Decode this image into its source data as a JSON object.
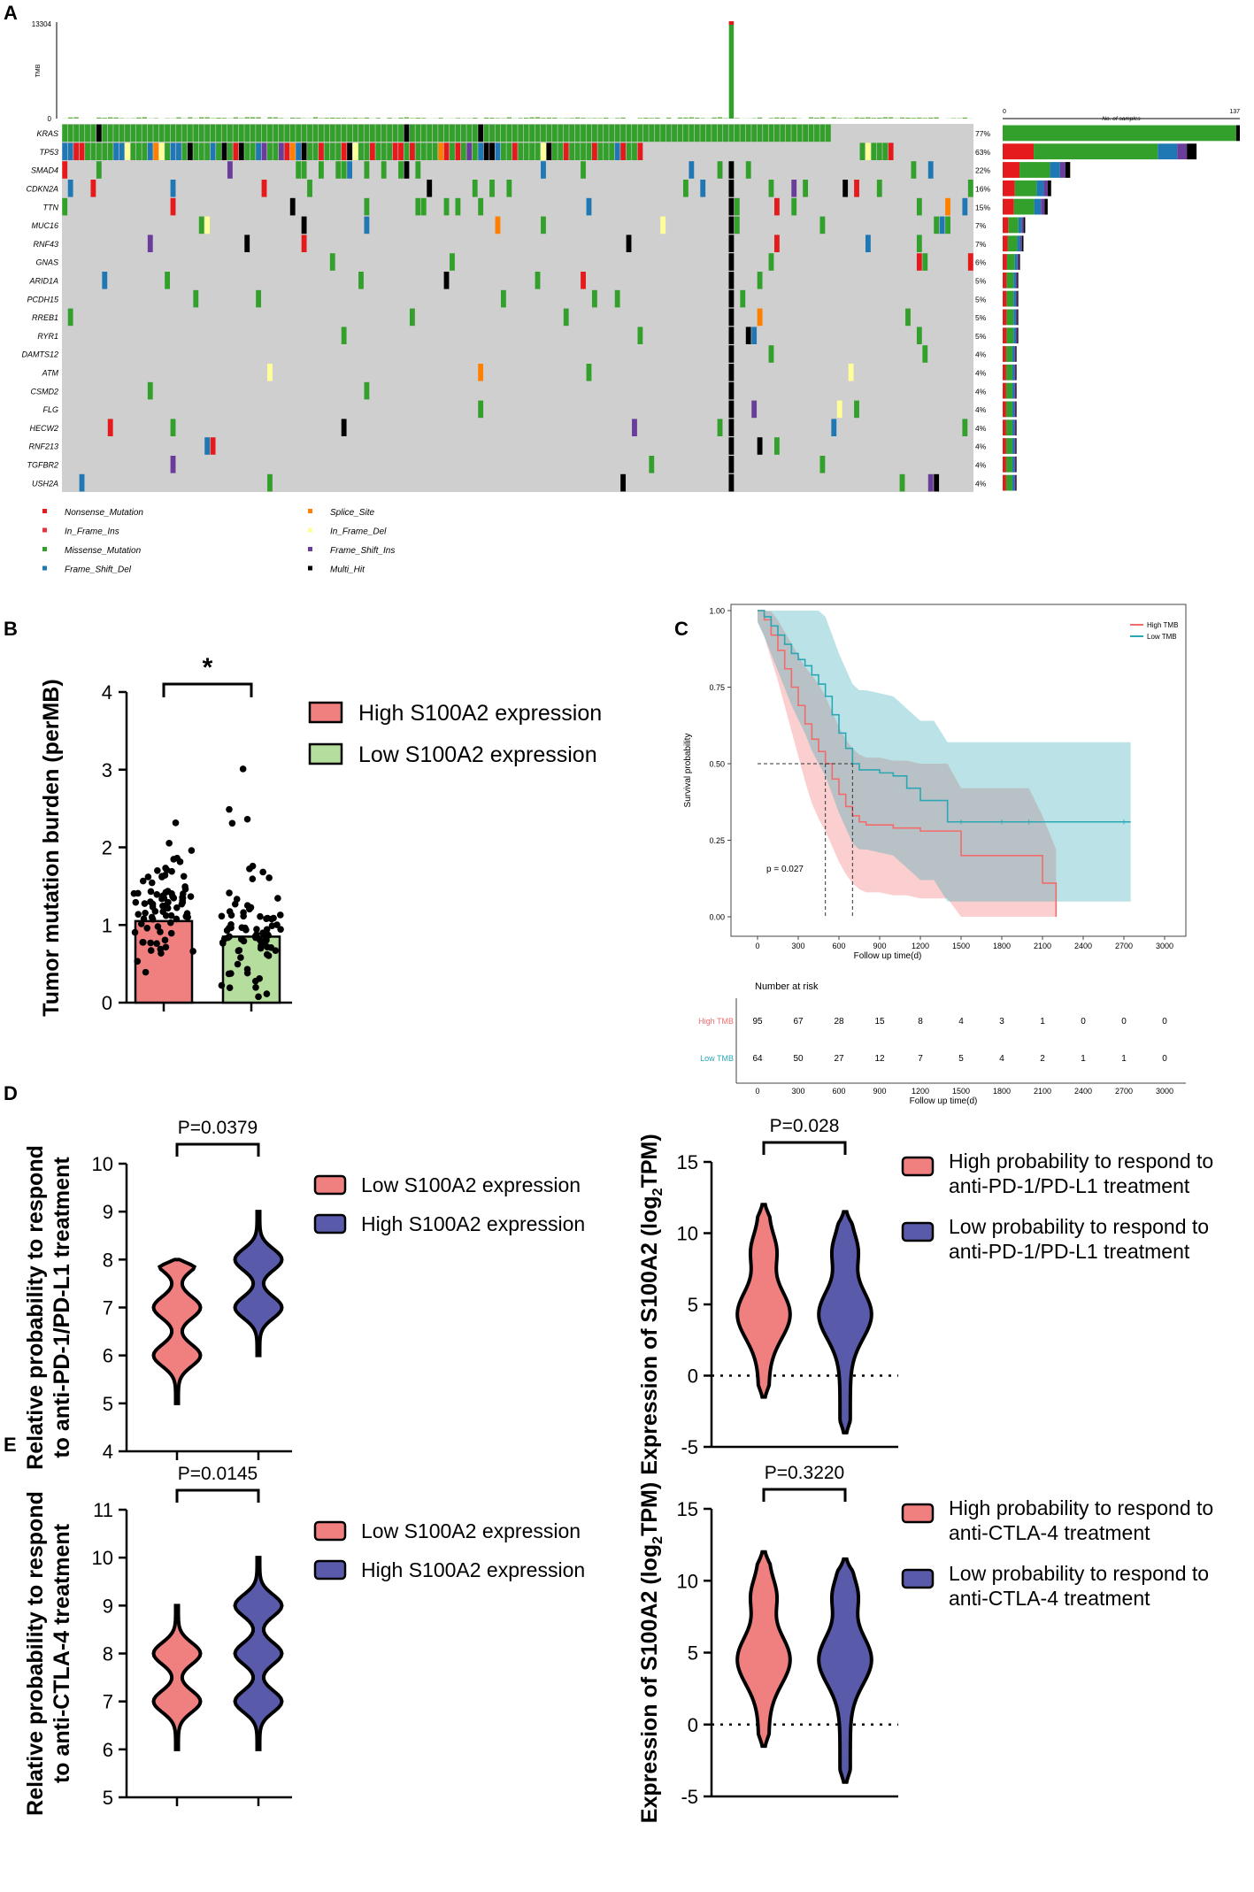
{
  "panel_labels": {
    "a": "A",
    "b": "B",
    "c": "C",
    "d": "D",
    "e": "E"
  },
  "chart_data": [
    {
      "panel": "A",
      "type": "heatmap",
      "title": "Oncoplot of top mutated genes",
      "tmb_axis": {
        "label": "TMB",
        "max_label": "13304",
        "min_label": "0"
      },
      "samples_axis": {
        "label": "No. of samples",
        "min_label": "0",
        "max_label": "137",
        "max": 137
      },
      "genes": [
        "KRAS",
        "TP53",
        "SMAD4",
        "CDKN2A",
        "TTN",
        "MUC16",
        "RNF43",
        "GNAS",
        "ARID1A",
        "PCDH15",
        "RREB1",
        "RYR1",
        "ADAMTS12",
        "ATM",
        "CSMD2",
        "FLG",
        "HECW2",
        "RNF213",
        "TGFBR2",
        "USH2A"
      ],
      "gene_labels": [
        "KRAS",
        "TP53",
        "SMAD4",
        "CDKN2A",
        "TTN",
        "MUC16",
        "RNF43",
        "GNAS",
        "ARID1A",
        "PCDH15",
        "RREB1",
        "RYR1",
        "DAMTS12",
        "ATM",
        "CSMD2",
        "FLG",
        "HECW2",
        "RNF213",
        "TGFBR2",
        "USH2A"
      ],
      "percentages": [
        "77%",
        "63%",
        "22%",
        "16%",
        "15%",
        "7%",
        "7%",
        "6%",
        "5%",
        "5%",
        "5%",
        "5%",
        "4%",
        "4%",
        "4%",
        "4%",
        "4%",
        "4%",
        "4%",
        "4%"
      ],
      "sample_counts": [
        137,
        112,
        39,
        28,
        26,
        13,
        12,
        10,
        9,
        9,
        9,
        9,
        8,
        8,
        8,
        8,
        8,
        8,
        8,
        8
      ],
      "legend": [
        {
          "label": "Nonsense_Mutation",
          "color": "#e41a1c"
        },
        {
          "label": "Splice_Site",
          "color": "#ff7f00"
        },
        {
          "label": "In_Frame_Ins",
          "color": "#e7323f"
        },
        {
          "label": "In_Frame_Del",
          "color": "#ffff99"
        },
        {
          "label": "Missense_Mutation",
          "color": "#33a02c"
        },
        {
          "label": "Frame_Shift_Ins",
          "color": "#6a3d9a"
        },
        {
          "label": "Frame_Shift_Del",
          "color": "#1f78b4"
        },
        {
          "label": "Multi_Hit",
          "color": "#000000"
        }
      ]
    },
    {
      "panel": "B",
      "type": "bar",
      "categories": [
        "High S100A2 expression",
        "Low S100A2 expression"
      ],
      "values": [
        1.05,
        0.85
      ],
      "colors": [
        "#f08080",
        "#b5dd9e"
      ],
      "ylabel": "Tumor mutation burden (perMB)",
      "ylim": [
        0,
        4
      ],
      "yticks": [
        "0",
        "1",
        "2",
        "3",
        "4"
      ],
      "significance": "*"
    },
    {
      "panel": "C",
      "type": "line",
      "xlabel": "Follow up time(d)",
      "ylabel": "Survival probability",
      "xticks": [
        "0",
        "300",
        "600",
        "900",
        "1200",
        "1500",
        "1800",
        "2100",
        "2400",
        "2700",
        "3000"
      ],
      "yticks": [
        "0.00",
        "0.25",
        "0.50",
        "0.75",
        "1.00"
      ],
      "xlim": [
        0,
        3000
      ],
      "ylim": [
        0,
        1
      ],
      "p_value": "p = 0.027",
      "series": [
        {
          "name": "High TMB",
          "color": "#f26b6b",
          "x": [
            0,
            50,
            100,
            150,
            200,
            250,
            300,
            350,
            400,
            450,
            500,
            550,
            600,
            650,
            700,
            750,
            800,
            900,
            1000,
            1100,
            1200,
            1300,
            1400,
            1500,
            1600,
            1800,
            2000,
            2100,
            2200
          ],
          "y": [
            1,
            0.97,
            0.92,
            0.87,
            0.81,
            0.75,
            0.69,
            0.63,
            0.58,
            0.54,
            0.5,
            0.45,
            0.4,
            0.36,
            0.33,
            0.31,
            0.3,
            0.3,
            0.29,
            0.29,
            0.28,
            0.28,
            0.28,
            0.2,
            0.2,
            0.2,
            0.2,
            0.11,
            0.0
          ]
        },
        {
          "name": "Low TMB",
          "color": "#2aa7b3",
          "x": [
            0,
            50,
            100,
            150,
            200,
            250,
            300,
            350,
            400,
            450,
            500,
            550,
            600,
            650,
            700,
            750,
            800,
            900,
            1000,
            1100,
            1200,
            1300,
            1400,
            1500,
            1600,
            1800,
            2000,
            2100,
            2200,
            2400,
            2700,
            2750
          ],
          "y": [
            1,
            0.98,
            0.95,
            0.92,
            0.89,
            0.86,
            0.84,
            0.82,
            0.79,
            0.76,
            0.72,
            0.66,
            0.6,
            0.55,
            0.5,
            0.48,
            0.48,
            0.47,
            0.46,
            0.42,
            0.38,
            0.38,
            0.31,
            0.31,
            0.31,
            0.31,
            0.31,
            0.31,
            0.31,
            0.31,
            0.31,
            0.31
          ]
        }
      ],
      "risk_table": {
        "title": "Number at risk",
        "xlabel": "Follow up time(d)",
        "rows": [
          {
            "name": "High TMB",
            "color": "#f26b6b",
            "values": [
              "95",
              "67",
              "28",
              "15",
              "8",
              "4",
              "3",
              "1",
              "0",
              "0",
              "0"
            ]
          },
          {
            "name": "Low TMB",
            "color": "#2aa7b3",
            "values": [
              "64",
              "50",
              "27",
              "12",
              "7",
              "5",
              "4",
              "2",
              "1",
              "1",
              "0"
            ]
          }
        ]
      }
    },
    {
      "panel": "D-left",
      "type": "violin",
      "ylabel_line1": "Relative probability to respond",
      "ylabel_line2": "to anti-PD-1/PD-L1 treatment",
      "ylim": [
        4,
        10
      ],
      "yticks": [
        "4",
        "5",
        "6",
        "7",
        "8",
        "9",
        "10"
      ],
      "p_value": "P=0.0379",
      "series": [
        {
          "name": "Low S100A2 expression",
          "color": "#f08080",
          "min": 5,
          "max": 8,
          "modes": [
            6,
            7,
            8
          ]
        },
        {
          "name": "High S100A2 expression",
          "color": "#5a5aab",
          "min": 6,
          "max": 9,
          "modes": [
            7,
            8
          ]
        }
      ]
    },
    {
      "panel": "D-right",
      "type": "violin",
      "ylabel": "Expression of S100A2 (log",
      "ylabel_sub": "2",
      "ylabel_tail": "TPM)",
      "ylim": [
        -5,
        15
      ],
      "yticks": [
        "-5",
        "0",
        "5",
        "10",
        "15"
      ],
      "p_value": "P=0.028",
      "series": [
        {
          "name": "High probability to respond to anti-PD-1/PD-L1 treatment",
          "legend_line1": "High probability to respond to",
          "legend_line2": "anti-PD-1/PD-L1 treatment",
          "color": "#f08080",
          "min": -1.5,
          "max": 12,
          "median": 4.3
        },
        {
          "name": "Low probability to respond to anti-PD-1/PD-L1 treatment",
          "legend_line1": "Low probability to respond to",
          "legend_line2": "anti-PD-1/PD-L1 treatment",
          "color": "#5a5aab",
          "min": -4,
          "max": 11.5,
          "median": 4.3
        }
      ]
    },
    {
      "panel": "E-left",
      "type": "violin",
      "ylabel_line1": "Relative probability to respond",
      "ylabel_line2": "to anti-CTLA-4 treatment",
      "ylim": [
        5,
        11
      ],
      "yticks": [
        "5",
        "6",
        "7",
        "8",
        "9",
        "10",
        "11"
      ],
      "p_value": "P=0.0145",
      "series": [
        {
          "name": "Low S100A2 expression",
          "color": "#f08080",
          "min": 6,
          "max": 9,
          "modes": [
            7,
            8
          ]
        },
        {
          "name": "High S100A2 expression",
          "color": "#5a5aab",
          "min": 6,
          "max": 10,
          "modes": [
            7,
            8,
            9
          ]
        }
      ]
    },
    {
      "panel": "E-right",
      "type": "violin",
      "ylabel": "Expression of S100A2 (log",
      "ylabel_sub": "2",
      "ylabel_tail": "TPM)",
      "ylim": [
        -5,
        15
      ],
      "yticks": [
        "-5",
        "0",
        "5",
        "10",
        "15"
      ],
      "p_value": "P=0.3220",
      "series": [
        {
          "name": "High probability to respond to anti-CTLA-4 treatment",
          "legend_line1": "High probability to respond to",
          "legend_line2": "anti-CTLA-4 treatment",
          "color": "#f08080",
          "min": -1.5,
          "max": 12,
          "median": 4.5
        },
        {
          "name": "Low probability to respond to anti-CTLA-4 treatment",
          "legend_line1": "Low probability to respond to",
          "legend_line2": "anti-CTLA-4 treatment",
          "color": "#5a5aab",
          "min": -4,
          "max": 11.5,
          "median": 4.5
        }
      ]
    }
  ]
}
